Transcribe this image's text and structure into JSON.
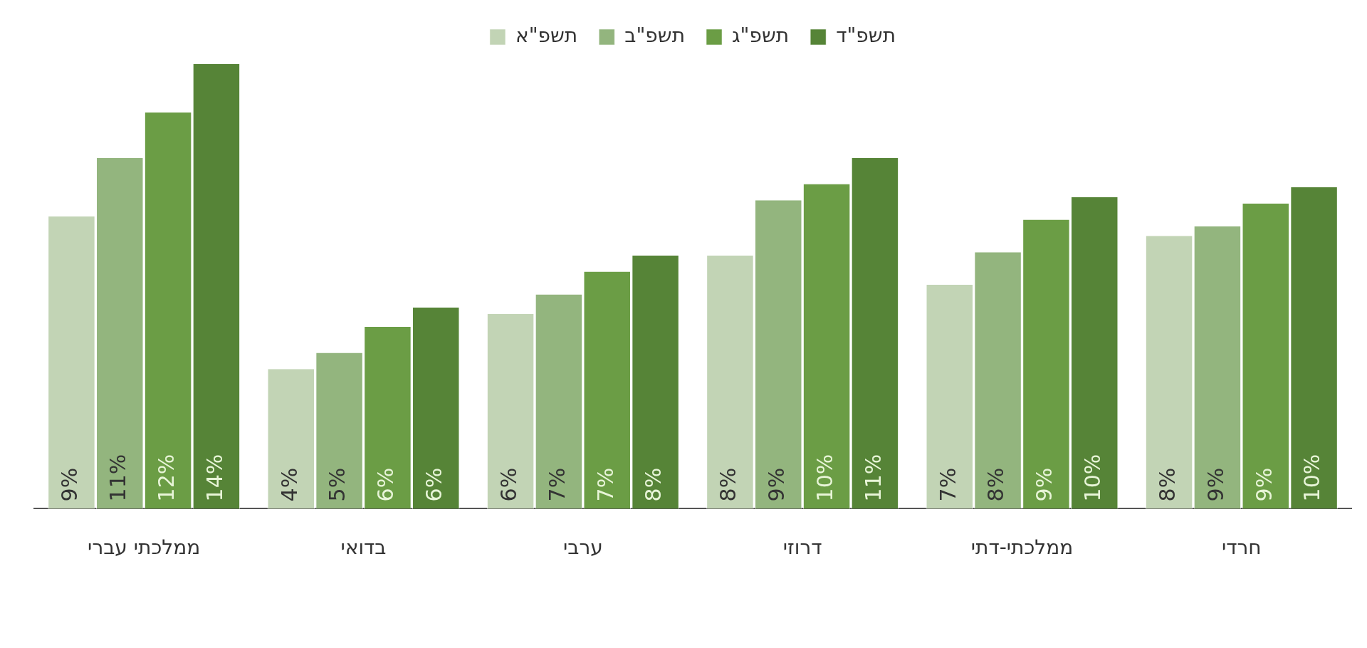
{
  "chart_data": {
    "type": "bar",
    "categories": [
      "ממלכתי עברי",
      "בדואי",
      "ערבי",
      "דרוזי",
      "ממלכתי-דתי",
      "חרדי"
    ],
    "series": [
      {
        "name": "תשפ\"א",
        "color": "#c2d4b5",
        "values": [
          9.0,
          4.3,
          6.0,
          7.8,
          6.9,
          8.4
        ],
        "value_labels": [
          "9%",
          "4%",
          "6%",
          "8%",
          "7%",
          "8%"
        ]
      },
      {
        "name": "תשפ\"ב",
        "color": "#93b57e",
        "values": [
          10.8,
          4.8,
          6.6,
          9.5,
          7.9,
          8.7
        ],
        "value_labels": [
          "11%",
          "5%",
          "7%",
          "9%",
          "8%",
          "9%"
        ]
      },
      {
        "name": "תשפ\"ג",
        "color": "#6b9d45",
        "values": [
          12.2,
          5.6,
          7.3,
          10.0,
          8.9,
          9.4
        ],
        "value_labels": [
          "12%",
          "6%",
          "7%",
          "10%",
          "9%",
          "9%"
        ]
      },
      {
        "name": "תשפ\"ד",
        "color": "#568437",
        "values": [
          13.7,
          6.2,
          7.8,
          10.8,
          9.6,
          9.9
        ],
        "value_labels": [
          "14%",
          "6%",
          "8%",
          "11%",
          "10%",
          "10%"
        ]
      }
    ],
    "legend": "top",
    "grid": false
  }
}
